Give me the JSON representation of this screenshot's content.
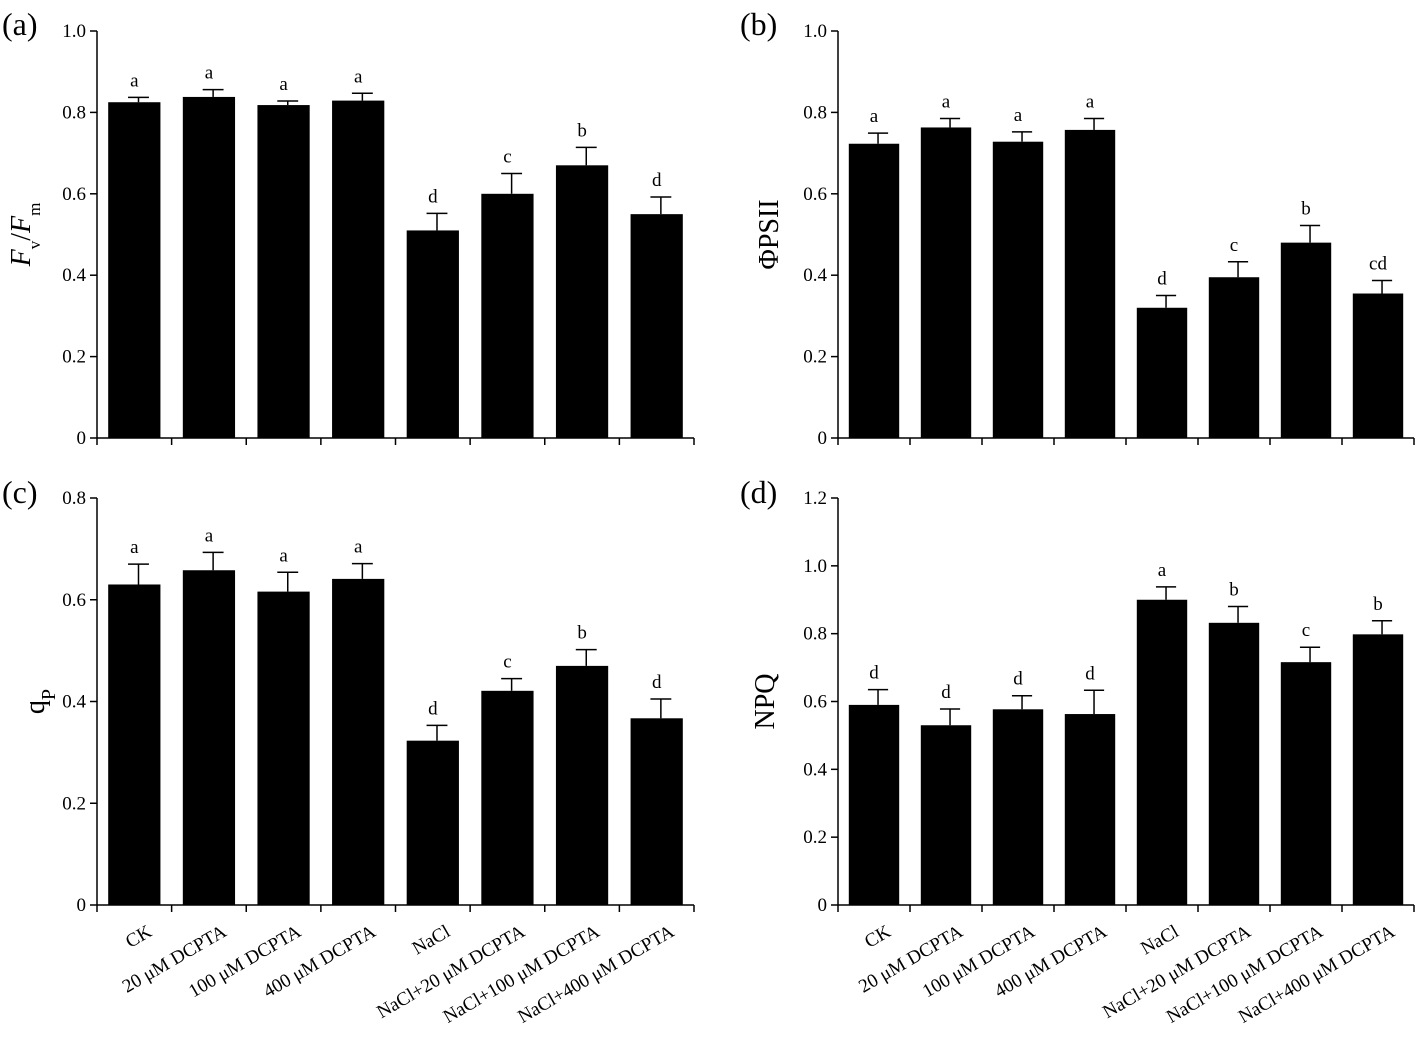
{
  "chart_data": [
    {
      "type": "bar",
      "panel": "(a)",
      "ylabel_parts": [
        "F",
        "v",
        "/",
        "F",
        "m"
      ],
      "ylabel": "Fv/Fm",
      "ylim": [
        0,
        1.0
      ],
      "yticks": [
        0,
        0.2,
        0.4,
        0.6,
        0.8,
        1.0
      ],
      "ytick_labels": [
        "0",
        "0.2",
        "0.4",
        "0.6",
        "0.8",
        "1.0"
      ],
      "categories": [
        "CK",
        "20 μM DCPTA",
        "100 μM DCPTA",
        "400 μM DCPTA",
        "NaCl",
        "NaCl+20 μM DCPTA",
        "NaCl+100 μM DCPTA",
        "NaCl+400 μM DCPTA"
      ],
      "show_categories": false,
      "values": [
        0.825,
        0.838,
        0.818,
        0.829,
        0.51,
        0.6,
        0.67,
        0.55
      ],
      "errors": [
        0.012,
        0.018,
        0.01,
        0.018,
        0.042,
        0.05,
        0.044,
        0.042
      ],
      "significance": [
        "a",
        "a",
        "a",
        "a",
        "d",
        "c",
        "b",
        "d"
      ]
    },
    {
      "type": "bar",
      "panel": "(b)",
      "ylabel": "ΦPSII",
      "ylim": [
        0,
        1.0
      ],
      "yticks": [
        0,
        0.2,
        0.4,
        0.6,
        0.8,
        1.0
      ],
      "ytick_labels": [
        "0",
        "0.2",
        "0.4",
        "0.6",
        "0.8",
        "1.0"
      ],
      "categories": [
        "CK",
        "20 μM DCPTA",
        "100 μM DCPTA",
        "400 μM DCPTA",
        "NaCl",
        "NaCl+20 μM DCPTA",
        "NaCl+100 μM DCPTA",
        "NaCl+400 μM DCPTA"
      ],
      "show_categories": false,
      "values": [
        0.723,
        0.763,
        0.728,
        0.757,
        0.32,
        0.395,
        0.48,
        0.355
      ],
      "errors": [
        0.026,
        0.022,
        0.024,
        0.028,
        0.03,
        0.038,
        0.042,
        0.032
      ],
      "significance": [
        "a",
        "a",
        "a",
        "a",
        "d",
        "c",
        "b",
        "cd"
      ]
    },
    {
      "type": "bar",
      "panel": "(c)",
      "ylabel_parts": [
        "q",
        "P"
      ],
      "ylabel": "qP",
      "ylim": [
        0,
        0.8
      ],
      "yticks": [
        0,
        0.2,
        0.4,
        0.6,
        0.8
      ],
      "ytick_labels": [
        "0",
        "0.2",
        "0.4",
        "0.6",
        "0.8"
      ],
      "categories": [
        "CK",
        "20 μM DCPTA",
        "100 μM DCPTA",
        "400 μM DCPTA",
        "NaCl",
        "NaCl+20 μM DCPTA",
        "NaCl+100 μM DCPTA",
        "NaCl+400 μM DCPTA"
      ],
      "show_categories": true,
      "values": [
        0.63,
        0.658,
        0.616,
        0.641,
        0.323,
        0.421,
        0.47,
        0.367
      ],
      "errors": [
        0.04,
        0.035,
        0.038,
        0.03,
        0.03,
        0.024,
        0.032,
        0.038
      ],
      "significance": [
        "a",
        "a",
        "a",
        "a",
        "d",
        "c",
        "b",
        "d"
      ]
    },
    {
      "type": "bar",
      "panel": "(d)",
      "ylabel": "NPQ",
      "ylim": [
        0,
        1.2
      ],
      "yticks": [
        0,
        0.2,
        0.4,
        0.6,
        0.8,
        1.0,
        1.2
      ],
      "ytick_labels": [
        "0",
        "0.2",
        "0.4",
        "0.6",
        "0.8",
        "1.0",
        "1.2"
      ],
      "categories": [
        "CK",
        "20 μM DCPTA",
        "100 μM DCPTA",
        "400 μM DCPTA",
        "NaCl",
        "NaCl+20 μM DCPTA",
        "NaCl+100 μM DCPTA",
        "NaCl+400 μM DCPTA"
      ],
      "show_categories": true,
      "values": [
        0.59,
        0.53,
        0.577,
        0.563,
        0.9,
        0.832,
        0.716,
        0.798
      ],
      "errors": [
        0.045,
        0.048,
        0.04,
        0.07,
        0.038,
        0.048,
        0.044,
        0.04
      ],
      "significance": [
        "d",
        "d",
        "d",
        "d",
        "a",
        "b",
        "c",
        "b"
      ]
    }
  ]
}
